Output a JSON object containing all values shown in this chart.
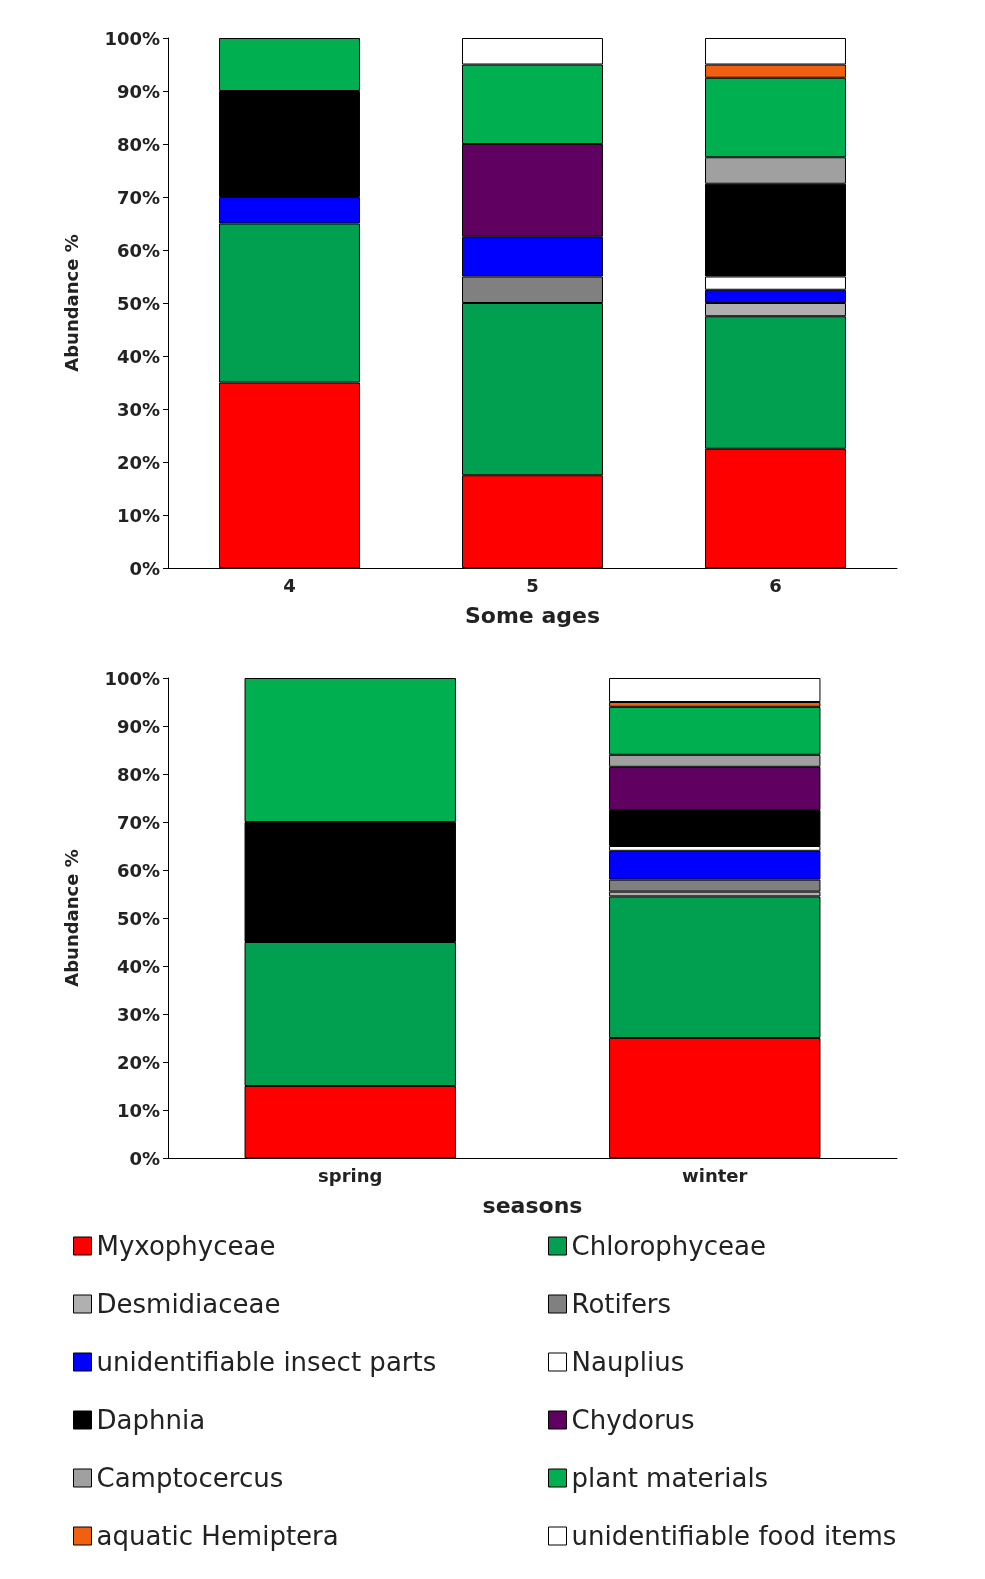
{
  "chart_data": [
    {
      "type": "bar",
      "stacked": true,
      "categories": [
        "4",
        "5",
        "6"
      ],
      "xlabel": "Some ages",
      "ylabel": "Abundance %",
      "ylim": [
        0,
        100
      ],
      "yticks": [
        {
          "value": 0,
          "label": "0%"
        },
        {
          "value": 10,
          "label": "10%"
        },
        {
          "value": 20,
          "label": "20%"
        },
        {
          "value": 30,
          "label": "30%"
        },
        {
          "value": 40,
          "label": "40%"
        },
        {
          "value": 50,
          "label": "50%"
        },
        {
          "value": 60,
          "label": "60%"
        },
        {
          "value": 70,
          "label": "70%"
        },
        {
          "value": 80,
          "label": "80%"
        },
        {
          "value": 90,
          "label": "90%"
        },
        {
          "value": 100,
          "label": "100%"
        }
      ],
      "grid": false,
      "legend": false,
      "series": [
        {
          "color": "#ff0000",
          "values": [
            35,
            17.5,
            22.5
          ]
        },
        {
          "color": "#00a050",
          "values": [
            30,
            32.5,
            25
          ]
        },
        {
          "color": "#b0b0b0",
          "values": [
            null,
            null,
            2.5
          ]
        },
        {
          "color": "#808080",
          "values": [
            null,
            5,
            null
          ]
        },
        {
          "color": "#0000ff",
          "values": [
            5,
            7.5,
            2.5
          ]
        },
        {
          "color": "#ffffff",
          "values": [
            null,
            null,
            2.5
          ]
        },
        {
          "color": "#000000",
          "values": [
            20,
            null,
            17.5
          ]
        },
        {
          "color": "#600060",
          "values": [
            null,
            17.5,
            null
          ]
        },
        {
          "color": "#a0a0a0",
          "values": [
            null,
            null,
            5
          ]
        },
        {
          "color": "#00b050",
          "values": [
            10,
            15,
            15
          ]
        },
        {
          "color": "#f06010",
          "values": [
            null,
            null,
            2.5
          ]
        },
        {
          "color": "#ffffff",
          "values": [
            null,
            5,
            5
          ]
        }
      ]
    },
    {
      "type": "bar",
      "stacked": true,
      "categories": [
        "spring",
        "winter"
      ],
      "xlabel": "seasons",
      "ylabel": "Abundance %",
      "ylim": [
        0,
        100
      ],
      "yticks": [
        {
          "value": 0,
          "label": "0%"
        },
        {
          "value": 10,
          "label": "10%"
        },
        {
          "value": 20,
          "label": "20%"
        },
        {
          "value": 30,
          "label": "30%"
        },
        {
          "value": 40,
          "label": "40%"
        },
        {
          "value": 50,
          "label": "50%"
        },
        {
          "value": 60,
          "label": "60%"
        },
        {
          "value": 70,
          "label": "70%"
        },
        {
          "value": 80,
          "label": "80%"
        },
        {
          "value": 90,
          "label": "90%"
        },
        {
          "value": 100,
          "label": "100%"
        }
      ],
      "grid": false,
      "legend": "bottom",
      "series": [
        {
          "name": "Myxophyceae",
          "color": "#ff0000",
          "values": [
            15,
            25
          ]
        },
        {
          "name": "Chlorophyceae",
          "color": "#00a050",
          "values": [
            30,
            29.5
          ]
        },
        {
          "name": "Desmidiaceae",
          "color": "#b0b0b0",
          "values": [
            null,
            1
          ]
        },
        {
          "name": "Rotifers",
          "color": "#808080",
          "values": [
            null,
            2.5
          ]
        },
        {
          "name": "unidentifiable insect parts",
          "color": "#0000ff",
          "values": [
            null,
            6
          ]
        },
        {
          "name": "Nauplius",
          "color": "#ffffff",
          "values": [
            null,
            1
          ]
        },
        {
          "name": "Daphnia",
          "color": "#000000",
          "values": [
            25,
            7.5
          ]
        },
        {
          "name": "Chydorus",
          "color": "#600060",
          "values": [
            null,
            9
          ]
        },
        {
          "name": "Camptocercus",
          "color": "#a0a0a0",
          "values": [
            null,
            2.5
          ]
        },
        {
          "name": "plant materials",
          "color": "#00b050",
          "values": [
            30,
            10
          ]
        },
        {
          "name": "aquatic Hemiptera",
          "color": "#f06010",
          "values": [
            null,
            1
          ]
        },
        {
          "name": "unidentifiable food items",
          "color": "#ffffff",
          "values": [
            null,
            5
          ]
        }
      ]
    }
  ]
}
